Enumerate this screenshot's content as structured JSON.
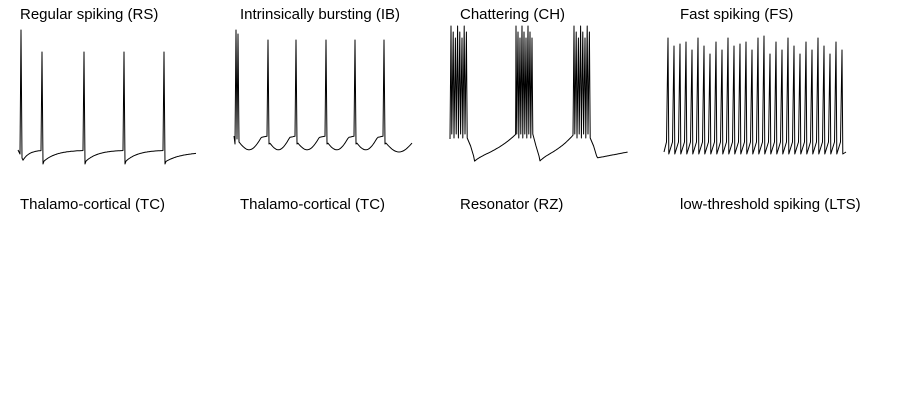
{
  "chart_data": [
    {
      "type": "line",
      "title": "Regular spiking (RS)",
      "waveform": "rs"
    },
    {
      "type": "line",
      "title": "Intrinsically bursting (IB)",
      "waveform": "ib"
    },
    {
      "type": "line",
      "title": "Chattering (CH)",
      "waveform": "ch"
    },
    {
      "type": "line",
      "title": "Fast spiking (FS)",
      "waveform": "fs"
    },
    {
      "type": "line",
      "title": "Thalamo-cortical (TC)",
      "waveform": ""
    },
    {
      "type": "line",
      "title": "Thalamo-cortical (TC)",
      "waveform": ""
    },
    {
      "type": "line",
      "title": "Resonator (RZ)",
      "waveform": ""
    },
    {
      "type": "line",
      "title": "low-threshold spiking (LTS)",
      "waveform": ""
    }
  ],
  "colors": {
    "trace": "#000000",
    "background": "#ffffff"
  }
}
